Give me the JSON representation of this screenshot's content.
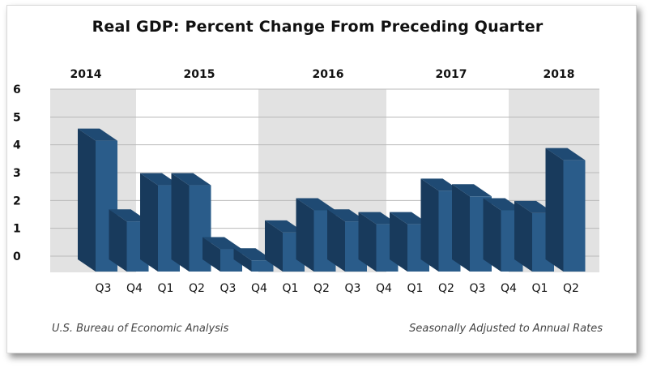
{
  "chart_data": {
    "type": "bar",
    "title": "Real GDP: Percent Change From Preceding Quarter",
    "categories": [
      "Q3",
      "Q4",
      "Q1",
      "Q2",
      "Q3",
      "Q4",
      "Q1",
      "Q2",
      "Q3",
      "Q4",
      "Q1",
      "Q2",
      "Q3",
      "Q4",
      "Q1",
      "Q2"
    ],
    "years": [
      {
        "label": "2014",
        "quarters": [
          "Q3",
          "Q4"
        ]
      },
      {
        "label": "2015",
        "quarters": [
          "Q1",
          "Q2",
          "Q3",
          "Q4"
        ]
      },
      {
        "label": "2016",
        "quarters": [
          "Q1",
          "Q2",
          "Q3",
          "Q4"
        ]
      },
      {
        "label": "2017",
        "quarters": [
          "Q1",
          "Q2",
          "Q3",
          "Q4"
        ]
      },
      {
        "label": "2018",
        "quarters": [
          "Q1",
          "Q2"
        ]
      }
    ],
    "values": [
      4.7,
      1.8,
      3.1,
      3.1,
      0.8,
      0.4,
      1.4,
      2.2,
      1.8,
      1.7,
      1.7,
      2.9,
      2.7,
      2.2,
      2.1,
      4.0
    ],
    "yticks": [
      "0",
      "1",
      "2",
      "3",
      "4",
      "5",
      "6"
    ],
    "ylim": [
      0,
      6
    ],
    "grid": true,
    "colors": {
      "bar_front": "#2a5c8a",
      "bar_side": "#183a5c",
      "bar_top": "#1f4a73",
      "band_shaded": "#e2e2e2",
      "band_plain": "#ffffff",
      "grid": "#b9b9b9"
    }
  },
  "footer": {
    "source": "U.S. Bureau of Economic Analysis",
    "note": "Seasonally Adjusted to Annual Rates"
  }
}
